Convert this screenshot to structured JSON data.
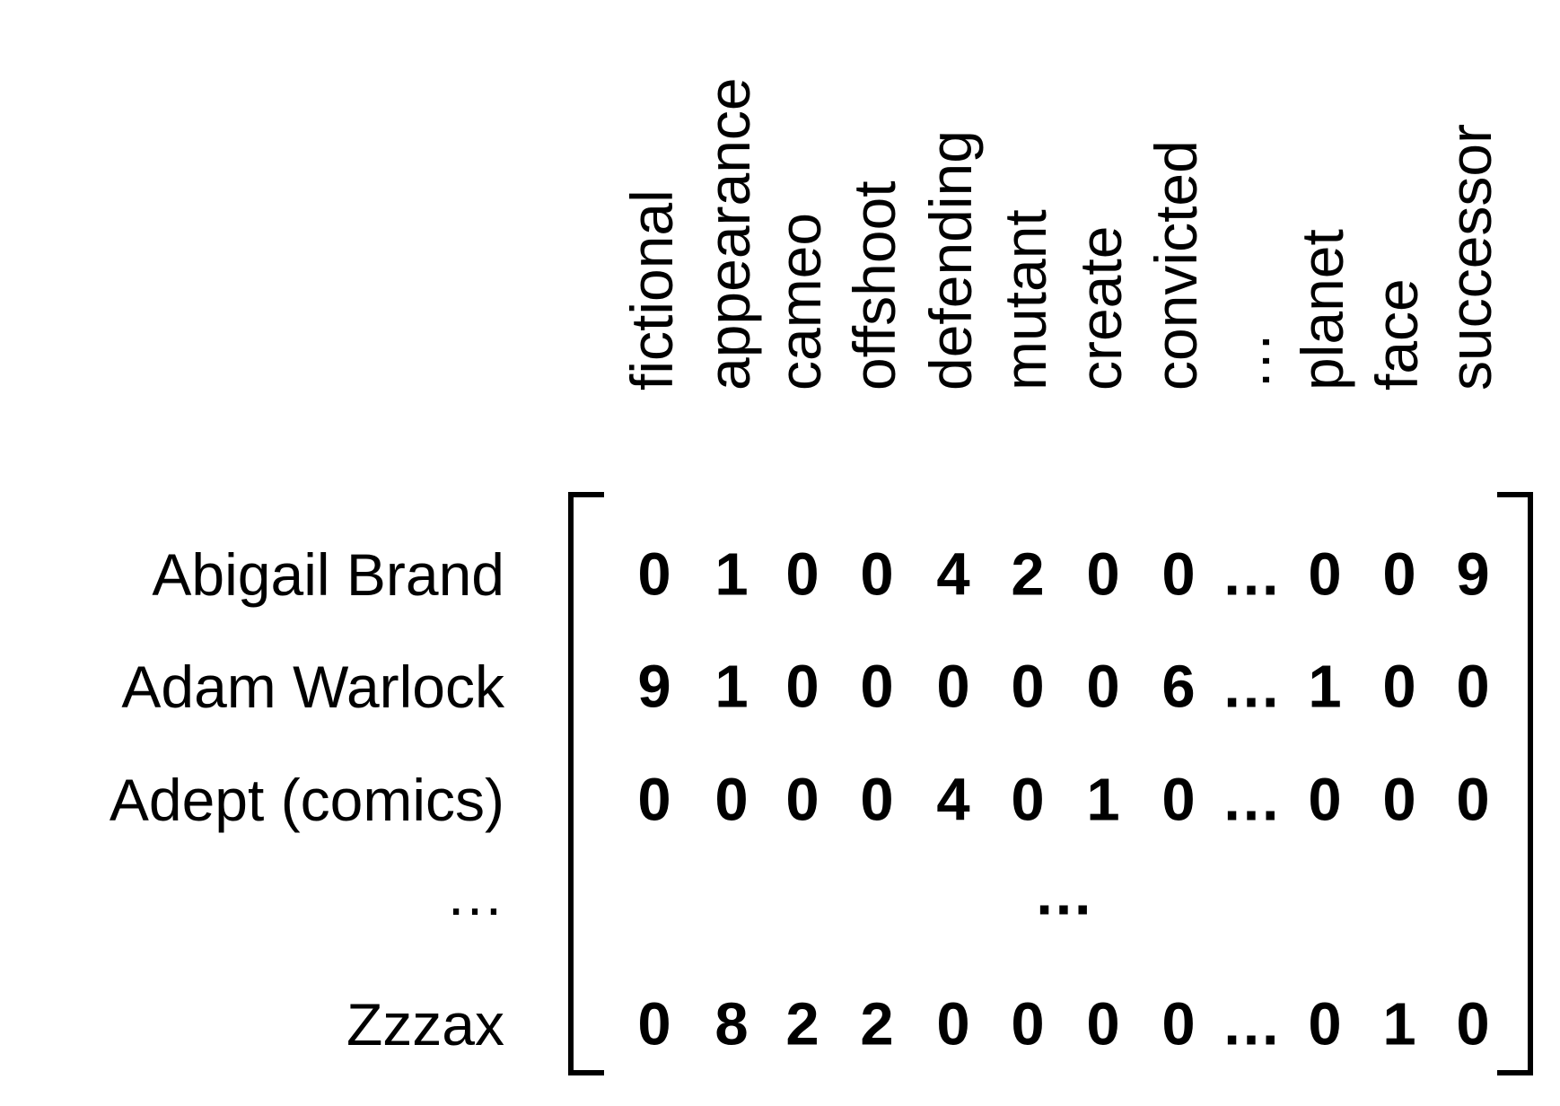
{
  "columns": [
    "fictional",
    "appearance",
    "cameo",
    "offshoot",
    "defending",
    "mutant",
    "create",
    "convicted",
    "…",
    "planet",
    "face",
    "successor"
  ],
  "rows": [
    {
      "label": "Abigail Brand",
      "values": [
        "0",
        "1",
        "0",
        "0",
        "4",
        "2",
        "0",
        "0",
        "…",
        "0",
        "0",
        "9"
      ]
    },
    {
      "label": "Adam Warlock",
      "values": [
        "9",
        "1",
        "0",
        "0",
        "0",
        "0",
        "0",
        "6",
        "…",
        "1",
        "0",
        "0"
      ]
    },
    {
      "label": "Adept (comics)",
      "values": [
        "0",
        "0",
        "0",
        "0",
        "4",
        "0",
        "1",
        "0",
        "…",
        "0",
        "0",
        "0"
      ]
    },
    {
      "label": "…",
      "values": [
        "…"
      ]
    },
    {
      "label": "Zzzax",
      "values": [
        "0",
        "8",
        "2",
        "2",
        "0",
        "0",
        "0",
        "0",
        "…",
        "0",
        "1",
        "0"
      ]
    }
  ]
}
